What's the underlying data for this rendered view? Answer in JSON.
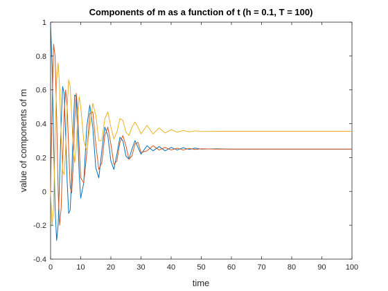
{
  "chart_data": {
    "type": "line",
    "title": "Components of m as a function of t (h = 0.1, T = 100)",
    "xlabel": "time",
    "ylabel": "value of components of m",
    "xlim": [
      0,
      100
    ],
    "ylim": [
      -0.4,
      1
    ],
    "xticks": [
      0,
      10,
      20,
      30,
      40,
      50,
      60,
      70,
      80,
      90,
      100
    ],
    "yticks": [
      -0.4,
      -0.2,
      0,
      0.2,
      0.4,
      0.6,
      0.8,
      1
    ],
    "ytick_labels": [
      "-0.4",
      "-0.2",
      "0",
      "0.2",
      "0.4",
      "0.6",
      "0.8",
      "1"
    ],
    "grid": false,
    "legend": "none",
    "series": [
      {
        "color": "#0072BD",
        "x": [
          0,
          0.5,
          1,
          1.5,
          2,
          2.5,
          3,
          3.5,
          4,
          4.5,
          5,
          5.5,
          6,
          6.5,
          7,
          7.5,
          8,
          8.5,
          9,
          9.5,
          10,
          11,
          12,
          13,
          14,
          15,
          16,
          17,
          18,
          19,
          20,
          21,
          22,
          23,
          24,
          25,
          26,
          27,
          28,
          29,
          30,
          32,
          34,
          36,
          38,
          40,
          42,
          44,
          46,
          48,
          50,
          55,
          60,
          70,
          80,
          90,
          100
        ],
        "y": [
          1.0,
          0.74,
          0.3,
          -0.1,
          -0.29,
          -0.2,
          0.08,
          0.4,
          0.62,
          0.58,
          0.34,
          0.06,
          -0.13,
          -0.11,
          0.09,
          0.37,
          0.57,
          0.56,
          0.34,
          0.1,
          -0.04,
          0.05,
          0.38,
          0.51,
          0.38,
          0.14,
          0.08,
          0.24,
          0.38,
          0.33,
          0.18,
          0.13,
          0.22,
          0.32,
          0.3,
          0.21,
          0.19,
          0.25,
          0.3,
          0.26,
          0.22,
          0.27,
          0.24,
          0.265,
          0.24,
          0.26,
          0.245,
          0.258,
          0.248,
          0.256,
          0.25,
          0.252,
          0.25,
          0.25,
          0.25,
          0.25,
          0.25
        ]
      },
      {
        "color": "#D95319",
        "x": [
          0,
          0.5,
          1,
          1.5,
          2,
          2.5,
          3,
          3.5,
          4,
          4.5,
          5,
          5.5,
          6,
          6.5,
          7,
          7.5,
          8,
          8.5,
          9,
          9.5,
          10,
          11,
          12,
          13,
          14,
          15,
          16,
          17,
          18,
          19,
          20,
          21,
          22,
          23,
          24,
          25,
          26,
          27,
          28,
          29,
          30,
          32,
          34,
          36,
          38,
          40,
          42,
          44,
          46,
          48,
          50,
          55,
          60,
          70,
          80,
          90,
          100
        ],
        "y": [
          0.0,
          0.5,
          0.87,
          0.8,
          0.45,
          0.0,
          -0.2,
          -0.1,
          0.18,
          0.46,
          0.6,
          0.5,
          0.25,
          0.03,
          -0.01,
          0.15,
          0.42,
          0.58,
          0.48,
          0.26,
          0.08,
          0.05,
          0.22,
          0.46,
          0.47,
          0.28,
          0.13,
          0.17,
          0.33,
          0.38,
          0.28,
          0.16,
          0.18,
          0.29,
          0.33,
          0.27,
          0.19,
          0.21,
          0.28,
          0.29,
          0.23,
          0.24,
          0.27,
          0.245,
          0.26,
          0.245,
          0.255,
          0.245,
          0.254,
          0.248,
          0.252,
          0.25,
          0.25,
          0.25,
          0.25,
          0.25,
          0.25
        ]
      },
      {
        "color": "#EDB120",
        "x": [
          0,
          0.5,
          1,
          1.5,
          2,
          2.5,
          3,
          3.5,
          4,
          4.5,
          5,
          5.5,
          6,
          6.5,
          7,
          7.5,
          8,
          8.5,
          9,
          9.5,
          10,
          11,
          12,
          13,
          14,
          15,
          16,
          17,
          18,
          19,
          20,
          21,
          22,
          23,
          24,
          25,
          26,
          27,
          28,
          29,
          30,
          32,
          34,
          36,
          38,
          40,
          42,
          44,
          46,
          48,
          50,
          55,
          60,
          70,
          80,
          90,
          100
        ],
        "y": [
          0.0,
          -0.2,
          -0.1,
          0.3,
          0.65,
          0.76,
          0.62,
          0.33,
          0.12,
          0.1,
          0.25,
          0.5,
          0.66,
          0.62,
          0.45,
          0.25,
          0.17,
          0.25,
          0.45,
          0.56,
          0.5,
          0.3,
          0.24,
          0.38,
          0.52,
          0.45,
          0.3,
          0.3,
          0.43,
          0.47,
          0.38,
          0.31,
          0.35,
          0.43,
          0.42,
          0.35,
          0.33,
          0.38,
          0.41,
          0.38,
          0.34,
          0.39,
          0.34,
          0.375,
          0.345,
          0.365,
          0.35,
          0.36,
          0.352,
          0.358,
          0.354,
          0.355,
          0.355,
          0.355,
          0.355,
          0.355,
          0.355
        ]
      }
    ]
  }
}
